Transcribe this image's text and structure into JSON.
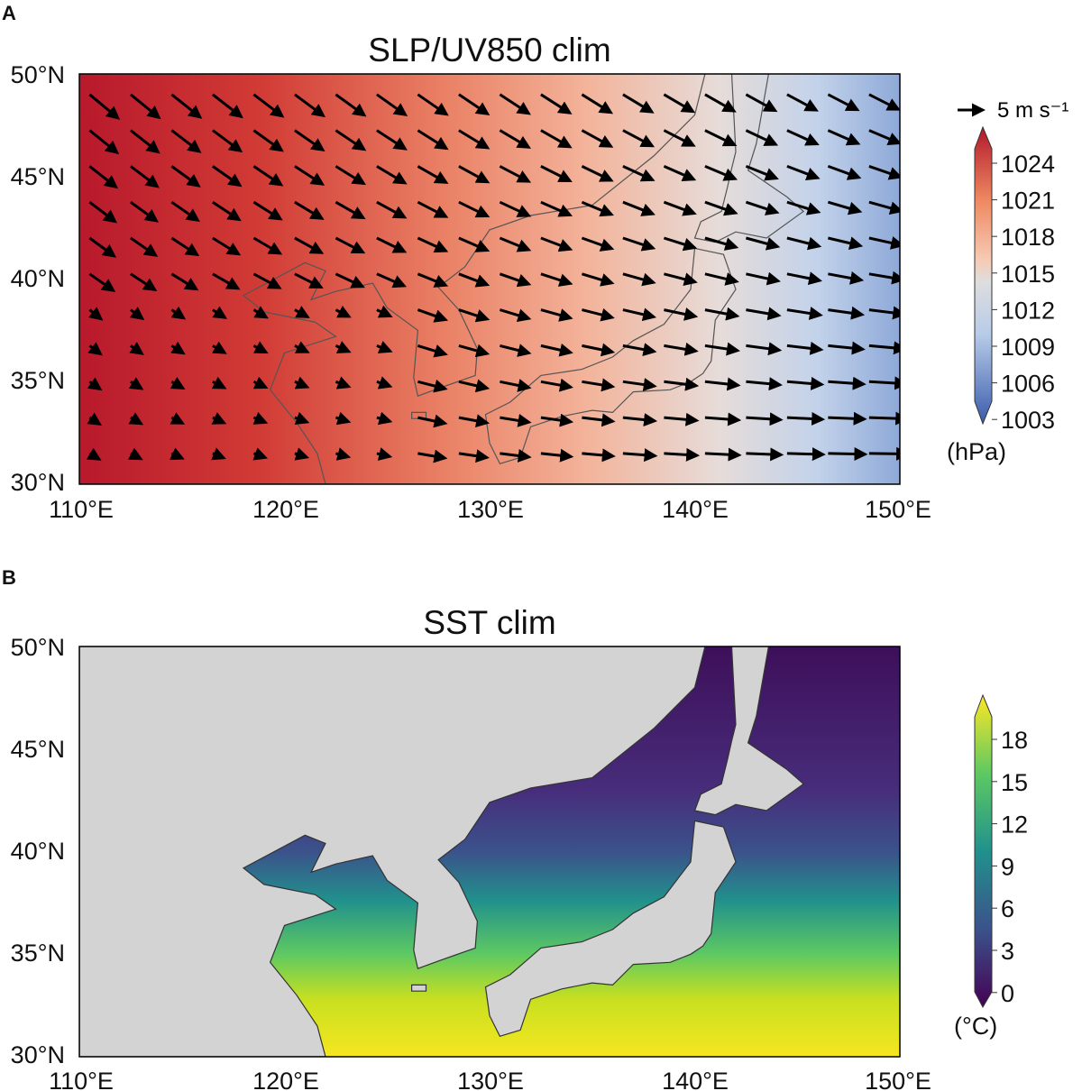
{
  "chart_data": [
    {
      "panel_label": "A",
      "type": "heatmap",
      "title": "SLP/UV850 clim",
      "variable": "sea level pressure with 850 hPa wind vectors",
      "xlim": [
        110,
        150
      ],
      "ylim": [
        30,
        50
      ],
      "xticks": [
        "110°E",
        "120°E",
        "130°E",
        "140°E",
        "150°E"
      ],
      "yticks": [
        "50°N",
        "45°N",
        "40°N",
        "35°N",
        "30°N"
      ],
      "colormap": "RdBu_r",
      "colorbar": {
        "ticks": [
          "1024",
          "1021",
          "1018",
          "1015",
          "1012",
          "1009",
          "1006",
          "1003"
        ],
        "range": [
          1002,
          1026
        ],
        "units": "(hPa)",
        "colors": [
          "#3b5fb0",
          "#8fb0dc",
          "#dcdcdc",
          "#f3a98a",
          "#b2182b"
        ]
      },
      "vector_key": "5 m s⁻¹"
    },
    {
      "panel_label": "B",
      "type": "heatmap",
      "title": "SST clim",
      "variable": "sea surface temperature",
      "xlim": [
        110,
        150
      ],
      "ylim": [
        30,
        50
      ],
      "xticks": [
        "110°E",
        "120°E",
        "130°E",
        "140°E",
        "150°E"
      ],
      "yticks": [
        "50°N",
        "45°N",
        "40°N",
        "35°N",
        "30°N"
      ],
      "colormap": "viridis",
      "land_color": "#d3d3d3",
      "colorbar": {
        "ticks": [
          "18",
          "15",
          "12",
          "9",
          "6",
          "3",
          "0"
        ],
        "range": [
          -1,
          20
        ],
        "units": "(°C)",
        "colors": [
          "#440154",
          "#3b528b",
          "#21918c",
          "#5ec962",
          "#fde725"
        ]
      }
    }
  ]
}
